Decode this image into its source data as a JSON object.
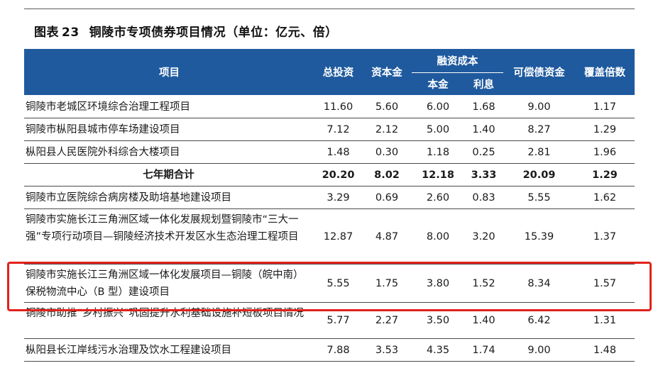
{
  "title": {
    "label": "图表",
    "number": "23",
    "text": "铜陵市专项债券项目情况（单位：亿元、倍）"
  },
  "header": {
    "project": "项目",
    "total_investment": "总投资",
    "capital": "资本金",
    "financing_cost": "融资成本",
    "principal": "本金",
    "interest": "利息",
    "repayable_funds": "可偿债资金",
    "coverage": "覆盖倍数"
  },
  "rows": [
    {
      "name": "铜陵市老城区环境综合治理工程项目",
      "total": "11.60",
      "capital": "5.60",
      "principal": "6.00",
      "interest": "1.68",
      "funds": "9.00",
      "coverage": "1.17"
    },
    {
      "name": "铜陵市枞阳县城市停车场建设项目",
      "total": "7.12",
      "capital": "2.12",
      "principal": "5.00",
      "interest": "1.40",
      "funds": "8.27",
      "coverage": "1.29"
    },
    {
      "name": "枞阳县人民医院外科综合大楼项目",
      "total": "1.48",
      "capital": "0.30",
      "principal": "1.18",
      "interest": "0.25",
      "funds": "2.81",
      "coverage": "1.96"
    },
    {
      "name": "七年期合计",
      "total": "20.20",
      "capital": "8.02",
      "principal": "12.18",
      "interest": "3.33",
      "funds": "20.09",
      "coverage": "1.29"
    },
    {
      "name": "铜陵市立医院综合病房楼及助培基地建设项目",
      "total": "3.29",
      "capital": "0.69",
      "principal": "2.60",
      "interest": "0.83",
      "funds": "5.55",
      "coverage": "1.62"
    },
    {
      "name": "铜陵市实施长江三角洲区域一体化发展规划暨铜陵市“三大一强”专项行动项目—铜陵经济技术开发区水生态治理工程项目",
      "total": "12.87",
      "capital": "4.87",
      "principal": "8.00",
      "interest": "3.20",
      "funds": "15.39",
      "coverage": "1.37"
    },
    {
      "name": "铜陵市实施长江三角洲区域一体化发展项目—铜陵（皖中南）保税物流中心（B 型）建设项目",
      "total": "5.55",
      "capital": "1.75",
      "principal": "3.80",
      "interest": "1.52",
      "funds": "8.34",
      "coverage": "1.57"
    },
    {
      "name": "铜陵市助推“乡村振兴”巩固提升水利基础设施补短板项目情况",
      "total": "5.77",
      "capital": "2.27",
      "principal": "3.50",
      "interest": "1.40",
      "funds": "6.42",
      "coverage": "1.31"
    },
    {
      "name": "枞阳县长江岸线污水治理及饮水工程建设项目",
      "total": "7.88",
      "capital": "3.53",
      "principal": "4.35",
      "interest": "1.74",
      "funds": "9.00",
      "coverage": "1.48"
    }
  ],
  "colors": {
    "header_bg": "#1f5a9e",
    "highlight": "#e2211c"
  }
}
